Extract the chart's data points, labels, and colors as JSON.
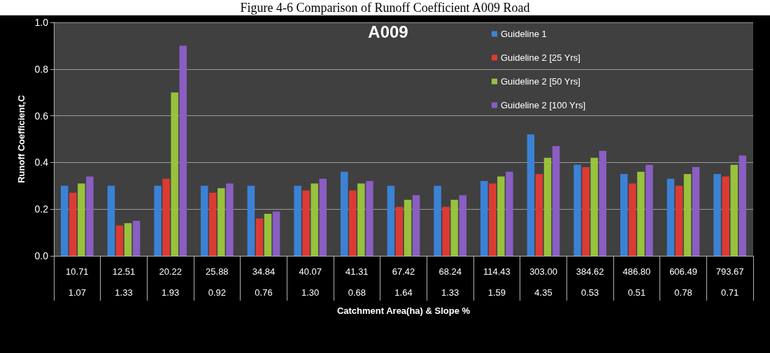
{
  "chart_data": {
    "type": "bar",
    "title": "A009",
    "annotations": [
      "Figure 4-6 Comparison of Runoff Coefficient A009 Road"
    ],
    "xlabel": "Catchment Area(ha) & Slope %",
    "ylabel": "Runoff Coefficient,C",
    "categories": [
      "10.71\n1.07",
      "12.51\n1.33",
      "20.22\n1.93",
      "25.88\n0.92",
      "34.84\n0.76",
      "40.07\n1.30",
      "41.31\n0.68",
      "67.42\n1.64",
      "68.24\n1.33",
      "114.43\n1.59",
      "303.00\n4.35",
      "384.62\n0.53",
      "486.80\n0.51",
      "606.49\n0.78",
      "793.67\n0.71"
    ],
    "series": [
      {
        "name": "Guideline 1",
        "color": "#3b82d6",
        "values": [
          0.3,
          0.3,
          0.3,
          0.3,
          0.3,
          0.3,
          0.36,
          0.3,
          0.3,
          0.32,
          0.52,
          0.39,
          0.35,
          0.33,
          0.35
        ]
      },
      {
        "name": "Guideline 2 [25 Yrs]",
        "color": "#dc3b33",
        "values": [
          0.27,
          0.13,
          0.33,
          0.27,
          0.16,
          0.28,
          0.28,
          0.21,
          0.21,
          0.31,
          0.35,
          0.38,
          0.31,
          0.3,
          0.34
        ]
      },
      {
        "name": "Guideline 2 [50 Yrs]",
        "color": "#98c23c",
        "values": [
          0.31,
          0.14,
          0.7,
          0.29,
          0.18,
          0.31,
          0.31,
          0.24,
          0.24,
          0.34,
          0.42,
          0.42,
          0.36,
          0.35,
          0.39
        ]
      },
      {
        "name": "Guideline 2 [100 Yrs]",
        "color": "#8a5ec2",
        "values": [
          0.34,
          0.15,
          0.9,
          0.31,
          0.19,
          0.33,
          0.32,
          0.26,
          0.26,
          0.36,
          0.47,
          0.45,
          0.39,
          0.38,
          0.43
        ]
      }
    ],
    "ylim": [
      0,
      1
    ],
    "yticks": [
      {
        "value": 0,
        "label": "0.0"
      },
      0.2,
      0.4,
      0.6,
      0.8,
      {
        "value": 1,
        "label": "1.0"
      }
    ],
    "grid": "y",
    "legend": "top right"
  }
}
